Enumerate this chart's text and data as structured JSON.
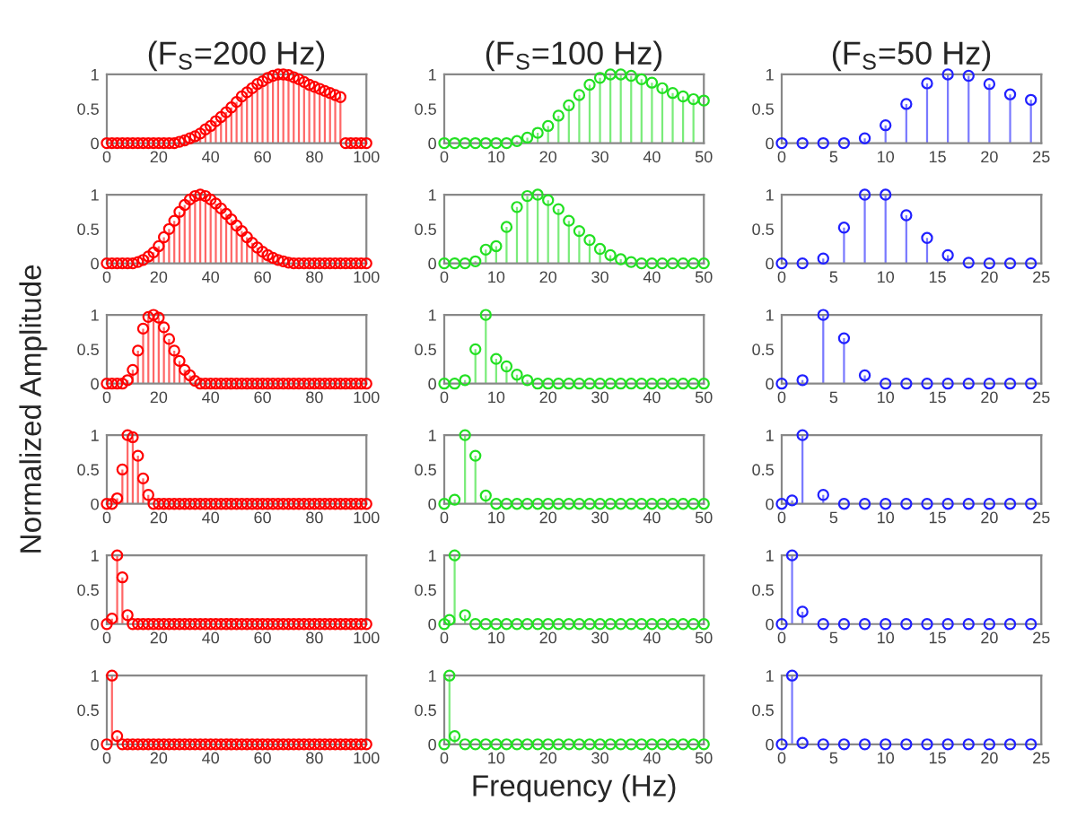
{
  "chart_data": [
    {
      "type": "lollipop",
      "title": "(F$_{S}$=200 Hz)",
      "color": "#ff0000",
      "marker": "circle",
      "xlim": [
        0,
        100
      ],
      "xticks": [
        0,
        20,
        40,
        60,
        80,
        100
      ],
      "ylim": [
        0,
        1
      ],
      "yticks": [
        0,
        0.5,
        1
      ],
      "x": [
        0,
        2,
        4,
        6,
        8,
        10,
        12,
        14,
        16,
        18,
        20,
        22,
        24,
        26,
        28,
        30,
        32,
        34,
        36,
        38,
        40,
        42,
        44,
        46,
        48,
        50,
        52,
        54,
        56,
        58,
        60,
        62,
        64,
        66,
        68,
        70,
        72,
        74,
        76,
        78,
        80,
        82,
        84,
        86,
        88,
        90,
        92,
        94,
        96,
        98,
        100
      ],
      "values": [
        0,
        0,
        0,
        0,
        0,
        0,
        0,
        0,
        0,
        0,
        0,
        0,
        0,
        0,
        0.02,
        0.04,
        0.07,
        0.1,
        0.14,
        0.2,
        0.25,
        0.32,
        0.38,
        0.45,
        0.52,
        0.6,
        0.68,
        0.74,
        0.8,
        0.86,
        0.9,
        0.95,
        0.98,
        1,
        1,
        0.99,
        0.96,
        0.93,
        0.89,
        0.85,
        0.82,
        0.79,
        0.76,
        0.73,
        0.7,
        0.67,
        0,
        0,
        0,
        0,
        0
      ]
    },
    {
      "type": "lollipop",
      "title": "(F$_{S}$=100 Hz)",
      "color": "#22e022",
      "marker": "circle",
      "xlim": [
        0,
        50
      ],
      "xticks": [
        0,
        10,
        20,
        30,
        40,
        50
      ],
      "ylim": [
        0,
        1
      ],
      "yticks": [
        0,
        0.5,
        1
      ],
      "x": [
        0,
        2,
        4,
        6,
        8,
        10,
        12,
        14,
        16,
        18,
        20,
        22,
        24,
        26,
        28,
        30,
        32,
        34,
        36,
        38,
        40,
        42,
        44,
        46,
        48,
        50
      ],
      "values": [
        0,
        0,
        0,
        0,
        0,
        0,
        0,
        0.03,
        0.08,
        0.15,
        0.25,
        0.4,
        0.55,
        0.7,
        0.85,
        0.95,
        1,
        1,
        0.98,
        0.93,
        0.88,
        0.8,
        0.73,
        0.68,
        0.64,
        0.62
      ]
    },
    {
      "type": "lollipop",
      "title": "(F$_{S}$=50 Hz)",
      "color": "#2020ff",
      "marker": "circle",
      "xlim": [
        0,
        25
      ],
      "xticks": [
        0,
        5,
        10,
        15,
        20,
        25
      ],
      "ylim": [
        0,
        1
      ],
      "yticks": [
        0,
        0.5,
        1
      ],
      "x": [
        0,
        2,
        4,
        6,
        8,
        10,
        12,
        14,
        16,
        18,
        20,
        22,
        24
      ],
      "values": [
        0,
        0,
        0,
        0,
        0.07,
        0.26,
        0.57,
        0.87,
        1,
        0.98,
        0.86,
        0.71,
        0.63
      ]
    },
    {
      "type": "lollipop",
      "color": "#ff0000",
      "marker": "circle",
      "xlim": [
        0,
        100
      ],
      "xticks": [
        0,
        20,
        40,
        60,
        80,
        100
      ],
      "ylim": [
        0,
        1
      ],
      "yticks": [
        0,
        0.5,
        1
      ],
      "x": [
        0,
        2,
        4,
        6,
        8,
        10,
        12,
        14,
        16,
        18,
        20,
        22,
        24,
        26,
        28,
        30,
        32,
        34,
        36,
        38,
        40,
        42,
        44,
        46,
        48,
        50,
        52,
        54,
        56,
        58,
        60,
        62,
        64,
        66,
        68,
        70,
        72,
        74,
        76,
        78,
        80,
        82,
        84,
        86,
        88,
        90,
        92,
        94,
        96,
        98,
        100
      ],
      "values": [
        0,
        0,
        0,
        0,
        0,
        0,
        0.02,
        0.05,
        0.1,
        0.16,
        0.25,
        0.38,
        0.5,
        0.62,
        0.75,
        0.85,
        0.93,
        0.98,
        1,
        0.98,
        0.93,
        0.87,
        0.8,
        0.72,
        0.64,
        0.55,
        0.47,
        0.38,
        0.3,
        0.23,
        0.17,
        0.12,
        0.08,
        0.05,
        0.03,
        0.01,
        0,
        0,
        0,
        0,
        0,
        0,
        0,
        0,
        0,
        0,
        0,
        0,
        0,
        0,
        0
      ]
    },
    {
      "type": "lollipop",
      "color": "#22e022",
      "marker": "circle",
      "xlim": [
        0,
        50
      ],
      "xticks": [
        0,
        10,
        20,
        30,
        40,
        50
      ],
      "ylim": [
        0,
        1
      ],
      "yticks": [
        0,
        0.5,
        1
      ],
      "x": [
        0,
        2,
        4,
        6,
        8,
        10,
        12,
        14,
        16,
        18,
        20,
        22,
        24,
        26,
        28,
        30,
        32,
        34,
        36,
        38,
        40,
        42,
        44,
        46,
        48,
        50
      ],
      "values": [
        0,
        0,
        0,
        0.03,
        0.2,
        0.25,
        0.53,
        0.82,
        0.98,
        1,
        0.92,
        0.79,
        0.62,
        0.47,
        0.34,
        0.21,
        0.12,
        0.06,
        0.02,
        0,
        0,
        0,
        0,
        0,
        0,
        0
      ]
    },
    {
      "type": "lollipop",
      "color": "#2020ff",
      "marker": "circle",
      "xlim": [
        0,
        25
      ],
      "xticks": [
        0,
        5,
        10,
        15,
        20,
        25
      ],
      "ylim": [
        0,
        1
      ],
      "yticks": [
        0,
        0.5,
        1
      ],
      "x": [
        0,
        2,
        4,
        6,
        8,
        10,
        12,
        14,
        16,
        18,
        20,
        22,
        24
      ],
      "values": [
        0,
        0,
        0.07,
        0.52,
        1,
        1,
        0.7,
        0.37,
        0.12,
        0.01,
        0,
        0,
        0
      ]
    },
    {
      "type": "lollipop",
      "color": "#ff0000",
      "marker": "circle",
      "xlim": [
        0,
        100
      ],
      "xticks": [
        0,
        20,
        40,
        60,
        80,
        100
      ],
      "ylim": [
        0,
        1
      ],
      "yticks": [
        0,
        0.5,
        1
      ],
      "x": [
        0,
        2,
        4,
        6,
        8,
        10,
        12,
        14,
        16,
        18,
        20,
        22,
        24,
        26,
        28,
        30,
        32,
        34,
        36,
        38,
        40,
        42,
        44,
        46,
        48,
        50,
        52,
        54,
        56,
        58,
        60,
        62,
        64,
        66,
        68,
        70,
        72,
        74,
        76,
        78,
        80,
        82,
        84,
        86,
        88,
        90,
        92,
        94,
        96,
        98,
        100
      ],
      "values": [
        0,
        0,
        0,
        0,
        0.05,
        0.2,
        0.48,
        0.8,
        0.97,
        1,
        0.96,
        0.82,
        0.65,
        0.48,
        0.33,
        0.2,
        0.12,
        0.04,
        0,
        0,
        0,
        0,
        0,
        0,
        0,
        0,
        0,
        0,
        0,
        0,
        0,
        0,
        0,
        0,
        0,
        0,
        0,
        0,
        0,
        0,
        0,
        0,
        0,
        0,
        0,
        0,
        0,
        0,
        0,
        0,
        0
      ]
    },
    {
      "type": "lollipop",
      "color": "#22e022",
      "marker": "circle",
      "xlim": [
        0,
        50
      ],
      "xticks": [
        0,
        10,
        20,
        30,
        40,
        50
      ],
      "ylim": [
        0,
        1
      ],
      "yticks": [
        0,
        0.5,
        1
      ],
      "x": [
        0,
        2,
        4,
        6,
        8,
        10,
        12,
        14,
        16,
        18,
        20,
        22,
        24,
        26,
        28,
        30,
        32,
        34,
        36,
        38,
        40,
        42,
        44,
        46,
        48,
        50
      ],
      "values": [
        0,
        0,
        0.05,
        0.5,
        1,
        0.36,
        0.25,
        0.13,
        0.05,
        0,
        0,
        0,
        0,
        0,
        0,
        0,
        0,
        0,
        0,
        0,
        0,
        0,
        0,
        0,
        0,
        0
      ]
    },
    {
      "type": "lollipop",
      "color": "#2020ff",
      "marker": "circle",
      "xlim": [
        0,
        25
      ],
      "xticks": [
        0,
        5,
        10,
        15,
        20,
        25
      ],
      "ylim": [
        0,
        1
      ],
      "yticks": [
        0,
        0.5,
        1
      ],
      "x": [
        0,
        2,
        4,
        6,
        8,
        10,
        12,
        14,
        16,
        18,
        20,
        22,
        24
      ],
      "values": [
        0,
        0.05,
        1,
        0.66,
        0.12,
        0,
        0,
        0,
        0,
        0,
        0,
        0,
        0
      ]
    },
    {
      "type": "lollipop",
      "ylabel": "Normalized Amplitude",
      "color": "#ff0000",
      "marker": "circle",
      "xlim": [
        0,
        100
      ],
      "xticks": [
        0,
        20,
        40,
        60,
        80,
        100
      ],
      "ylim": [
        0,
        1
      ],
      "yticks": [
        0,
        0.5,
        1
      ],
      "x": [
        0,
        2,
        4,
        6,
        8,
        10,
        12,
        14,
        16,
        18,
        20,
        22,
        24,
        26,
        28,
        30,
        32,
        34,
        36,
        38,
        40,
        42,
        44,
        46,
        48,
        50,
        52,
        54,
        56,
        58,
        60,
        62,
        64,
        66,
        68,
        70,
        72,
        74,
        76,
        78,
        80,
        82,
        84,
        86,
        88,
        90,
        92,
        94,
        96,
        98,
        100
      ],
      "values": [
        0,
        0,
        0.08,
        0.5,
        1,
        0.97,
        0.7,
        0.37,
        0.13,
        0,
        0,
        0,
        0,
        0,
        0,
        0,
        0,
        0,
        0,
        0,
        0,
        0,
        0,
        0,
        0,
        0,
        0,
        0,
        0,
        0,
        0,
        0,
        0,
        0,
        0,
        0,
        0,
        0,
        0,
        0,
        0,
        0,
        0,
        0,
        0,
        0,
        0,
        0,
        0,
        0,
        0
      ]
    },
    {
      "type": "lollipop",
      "color": "#22e022",
      "marker": "circle",
      "xlim": [
        0,
        50
      ],
      "xticks": [
        0,
        10,
        20,
        30,
        40,
        50
      ],
      "ylim": [
        0,
        1
      ],
      "yticks": [
        0,
        0.5,
        1
      ],
      "x": [
        0,
        2,
        4,
        6,
        8,
        10,
        12,
        14,
        16,
        18,
        20,
        22,
        24,
        26,
        28,
        30,
        32,
        34,
        36,
        38,
        40,
        42,
        44,
        46,
        48,
        50
      ],
      "values": [
        0,
        0.06,
        1,
        0.7,
        0.12,
        0,
        0,
        0,
        0,
        0,
        0,
        0,
        0,
        0,
        0,
        0,
        0,
        0,
        0,
        0,
        0,
        0,
        0,
        0,
        0,
        0
      ]
    },
    {
      "type": "lollipop",
      "color": "#2020ff",
      "marker": "circle",
      "xlim": [
        0,
        25
      ],
      "xticks": [
        0,
        5,
        10,
        15,
        20,
        25
      ],
      "ylim": [
        0,
        1
      ],
      "yticks": [
        0,
        0.5,
        1
      ],
      "x": [
        0,
        1,
        2,
        4,
        6,
        8,
        10,
        12,
        14,
        16,
        18,
        20,
        22,
        24
      ],
      "values": [
        0,
        0.05,
        1,
        0.13,
        0,
        0,
        0,
        0,
        0,
        0,
        0,
        0,
        0,
        0
      ]
    },
    {
      "type": "lollipop",
      "color": "#ff0000",
      "marker": "circle",
      "xlim": [
        0,
        100
      ],
      "xticks": [
        0,
        20,
        40,
        60,
        80,
        100
      ],
      "ylim": [
        0,
        1
      ],
      "yticks": [
        0,
        0.5,
        1
      ],
      "x": [
        0,
        2,
        4,
        6,
        8,
        10,
        12,
        14,
        16,
        18,
        20,
        22,
        24,
        26,
        28,
        30,
        32,
        34,
        36,
        38,
        40,
        42,
        44,
        46,
        48,
        50,
        52,
        54,
        56,
        58,
        60,
        62,
        64,
        66,
        68,
        70,
        72,
        74,
        76,
        78,
        80,
        82,
        84,
        86,
        88,
        90,
        92,
        94,
        96,
        98,
        100
      ],
      "values": [
        0,
        0.08,
        1,
        0.68,
        0.13,
        0,
        0,
        0,
        0,
        0,
        0,
        0,
        0,
        0,
        0,
        0,
        0,
        0,
        0,
        0,
        0,
        0,
        0,
        0,
        0,
        0,
        0,
        0,
        0,
        0,
        0,
        0,
        0,
        0,
        0,
        0,
        0,
        0,
        0,
        0,
        0,
        0,
        0,
        0,
        0,
        0,
        0,
        0,
        0,
        0,
        0
      ]
    },
    {
      "type": "lollipop",
      "color": "#22e022",
      "marker": "circle",
      "xlim": [
        0,
        50
      ],
      "xticks": [
        0,
        10,
        20,
        30,
        40,
        50
      ],
      "ylim": [
        0,
        1
      ],
      "yticks": [
        0,
        0.5,
        1
      ],
      "x": [
        0,
        1,
        2,
        4,
        6,
        8,
        10,
        12,
        14,
        16,
        18,
        20,
        22,
        24,
        26,
        28,
        30,
        32,
        34,
        36,
        38,
        40,
        42,
        44,
        46,
        48,
        50
      ],
      "values": [
        0,
        0.06,
        1,
        0.13,
        0,
        0,
        0,
        0,
        0,
        0,
        0,
        0,
        0,
        0,
        0,
        0,
        0,
        0,
        0,
        0,
        0,
        0,
        0,
        0,
        0,
        0,
        0
      ]
    },
    {
      "type": "lollipop",
      "color": "#2020ff",
      "marker": "circle",
      "xlim": [
        0,
        25
      ],
      "xticks": [
        0,
        5,
        10,
        15,
        20,
        25
      ],
      "ylim": [
        0,
        1
      ],
      "yticks": [
        0,
        0.5,
        1
      ],
      "x": [
        0,
        1,
        2,
        4,
        6,
        8,
        10,
        12,
        14,
        16,
        18,
        20,
        22,
        24
      ],
      "values": [
        0,
        1,
        0.18,
        0,
        0,
        0,
        0,
        0,
        0,
        0,
        0,
        0,
        0,
        0
      ]
    },
    {
      "type": "lollipop",
      "color": "#ff0000",
      "marker": "circle",
      "xlim": [
        0,
        100
      ],
      "xticks": [
        0,
        20,
        40,
        60,
        80,
        100
      ],
      "ylim": [
        0,
        1
      ],
      "yticks": [
        0,
        0.5,
        1
      ],
      "x": [
        0,
        2,
        4,
        6,
        8,
        10,
        12,
        14,
        16,
        18,
        20,
        22,
        24,
        26,
        28,
        30,
        32,
        34,
        36,
        38,
        40,
        42,
        44,
        46,
        48,
        50,
        52,
        54,
        56,
        58,
        60,
        62,
        64,
        66,
        68,
        70,
        72,
        74,
        76,
        78,
        80,
        82,
        84,
        86,
        88,
        90,
        92,
        94,
        96,
        98,
        100
      ],
      "values": [
        0,
        1,
        0.12,
        0,
        0,
        0,
        0,
        0,
        0,
        0,
        0,
        0,
        0,
        0,
        0,
        0,
        0,
        0,
        0,
        0,
        0,
        0,
        0,
        0,
        0,
        0,
        0,
        0,
        0,
        0,
        0,
        0,
        0,
        0,
        0,
        0,
        0,
        0,
        0,
        0,
        0,
        0,
        0,
        0,
        0,
        0,
        0,
        0,
        0,
        0,
        0
      ]
    },
    {
      "type": "lollipop",
      "xlabel": "Frequency (Hz)",
      "color": "#22e022",
      "marker": "circle",
      "xlim": [
        0,
        50
      ],
      "xticks": [
        0,
        10,
        20,
        30,
        40,
        50
      ],
      "ylim": [
        0,
        1
      ],
      "yticks": [
        0,
        0.5,
        1
      ],
      "x": [
        0,
        1,
        2,
        4,
        6,
        8,
        10,
        12,
        14,
        16,
        18,
        20,
        22,
        24,
        26,
        28,
        30,
        32,
        34,
        36,
        38,
        40,
        42,
        44,
        46,
        48,
        50
      ],
      "values": [
        0,
        1,
        0.12,
        0,
        0,
        0,
        0,
        0,
        0,
        0,
        0,
        0,
        0,
        0,
        0,
        0,
        0,
        0,
        0,
        0,
        0,
        0,
        0,
        0,
        0,
        0,
        0
      ]
    },
    {
      "type": "lollipop",
      "color": "#2020ff",
      "marker": "circle",
      "xlim": [
        0,
        25
      ],
      "xticks": [
        0,
        5,
        10,
        15,
        20,
        25
      ],
      "ylim": [
        0,
        1
      ],
      "yticks": [
        0,
        0.5,
        1
      ],
      "x": [
        0,
        1,
        2,
        4,
        6,
        8,
        10,
        12,
        14,
        16,
        18,
        20,
        22,
        24
      ],
      "values": [
        0,
        1,
        0.02,
        0,
        0,
        0,
        0,
        0,
        0,
        0,
        0,
        0,
        0,
        0
      ]
    }
  ]
}
